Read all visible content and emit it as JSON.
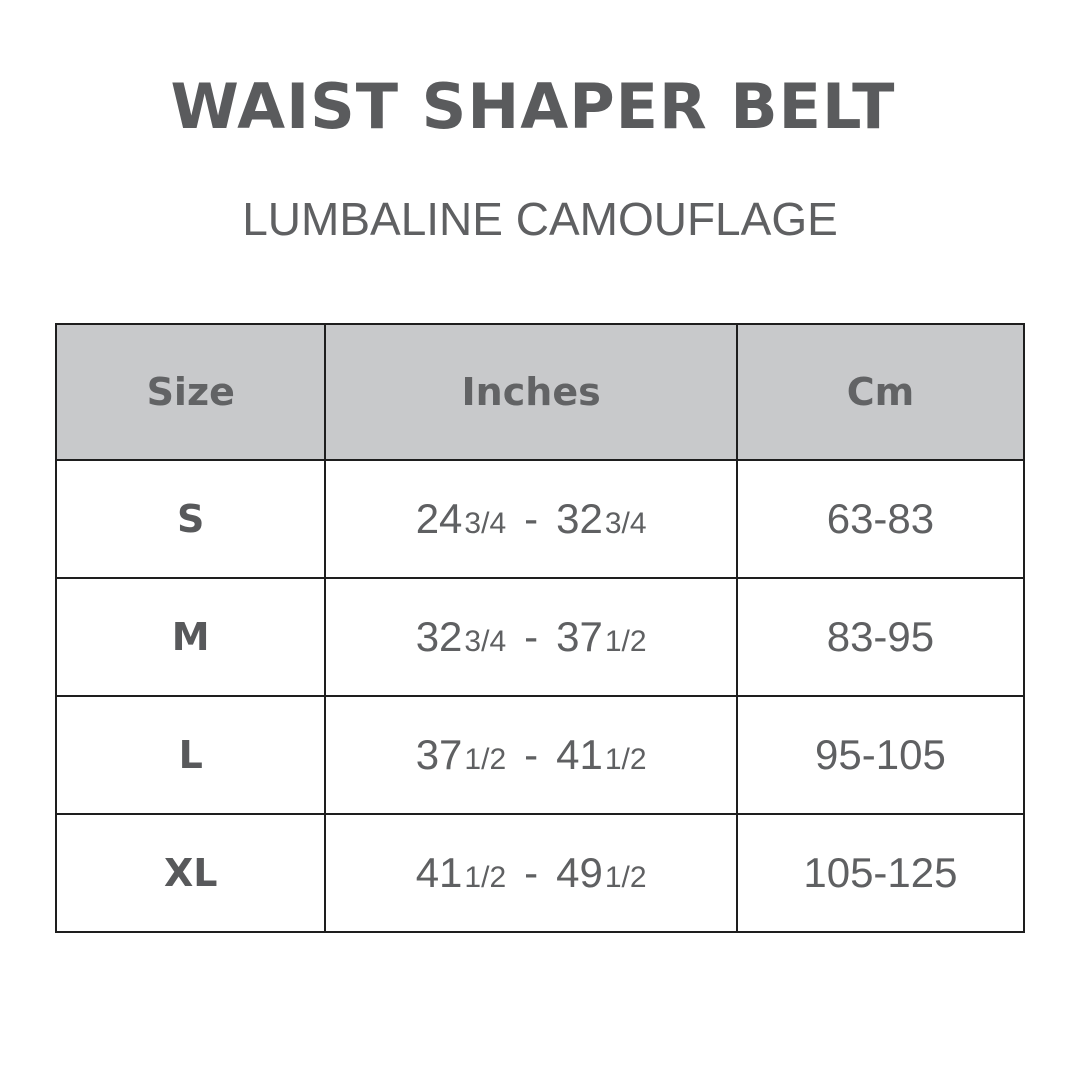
{
  "title": "WAIST SHAPER BELT",
  "subtitle": "LUMBALINE CAMOUFLAGE",
  "table": {
    "headers": [
      "Size",
      "Inches",
      "Cm"
    ],
    "rows": [
      {
        "size": "S",
        "in_from": "24",
        "in_from_frac": "3/4",
        "in_to": "32",
        "in_to_frac": "3/4",
        "cm": "63-83"
      },
      {
        "size": "M",
        "in_from": "32",
        "in_from_frac": "3/4",
        "in_to": "37",
        "in_to_frac": "1/2",
        "cm": "83-95"
      },
      {
        "size": "L",
        "in_from": "37",
        "in_from_frac": "1/2",
        "in_to": "41",
        "in_to_frac": "1/2",
        "cm": "95-105"
      },
      {
        "size": "XL",
        "in_from": "41",
        "in_from_frac": "1/2",
        "in_to": "49",
        "in_to_frac": "1/2",
        "cm": "105-125"
      }
    ],
    "separator": "-"
  },
  "colors": {
    "header_bg": "#c8c9cb",
    "text": "#5f6062",
    "border": "#1e1e1e"
  }
}
